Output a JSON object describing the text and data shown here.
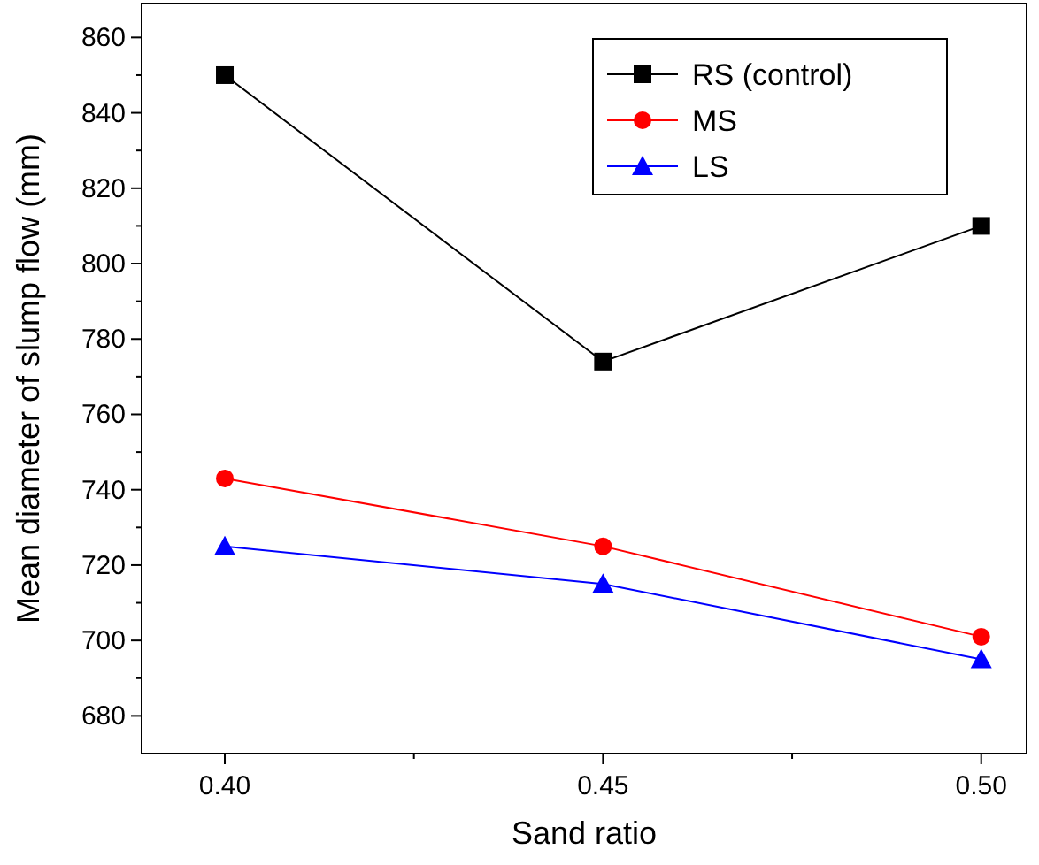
{
  "chart_data": {
    "type": "line",
    "xlabel": "Sand ratio",
    "ylabel": "Mean diameter of slump flow (mm)",
    "x": [
      0.4,
      0.45,
      0.5
    ],
    "xlim": [
      0.389,
      0.506
    ],
    "ylim": [
      670,
      869
    ],
    "xticks": [
      {
        "value": 0.4,
        "label": "0.40"
      },
      {
        "value": 0.425,
        "label": null
      },
      {
        "value": 0.45,
        "label": "0.45"
      },
      {
        "value": 0.475,
        "label": null
      },
      {
        "value": 0.5,
        "label": "0.50"
      }
    ],
    "yticks": [
      680,
      {
        "value": 690,
        "label": null
      },
      700,
      {
        "value": 710,
        "label": null
      },
      720,
      {
        "value": 730,
        "label": null
      },
      740,
      {
        "value": 750,
        "label": null
      },
      760,
      {
        "value": 770,
        "label": null
      },
      780,
      {
        "value": 790,
        "label": null
      },
      800,
      {
        "value": 810,
        "label": null
      },
      820,
      {
        "value": 830,
        "label": null
      },
      840,
      {
        "value": 850,
        "label": null
      },
      860
    ],
    "legend": "top right",
    "grid": false,
    "line_style": "solid",
    "series": [
      {
        "name": "RS (control)",
        "color": "#000000",
        "marker": "square",
        "values": [
          850,
          774,
          810
        ]
      },
      {
        "name": "MS",
        "color": "#ff0000",
        "marker": "circle",
        "values": [
          743,
          725,
          701
        ]
      },
      {
        "name": "LS",
        "color": "#0000ff",
        "marker": "triangle",
        "values": [
          725,
          715,
          695
        ]
      }
    ]
  }
}
